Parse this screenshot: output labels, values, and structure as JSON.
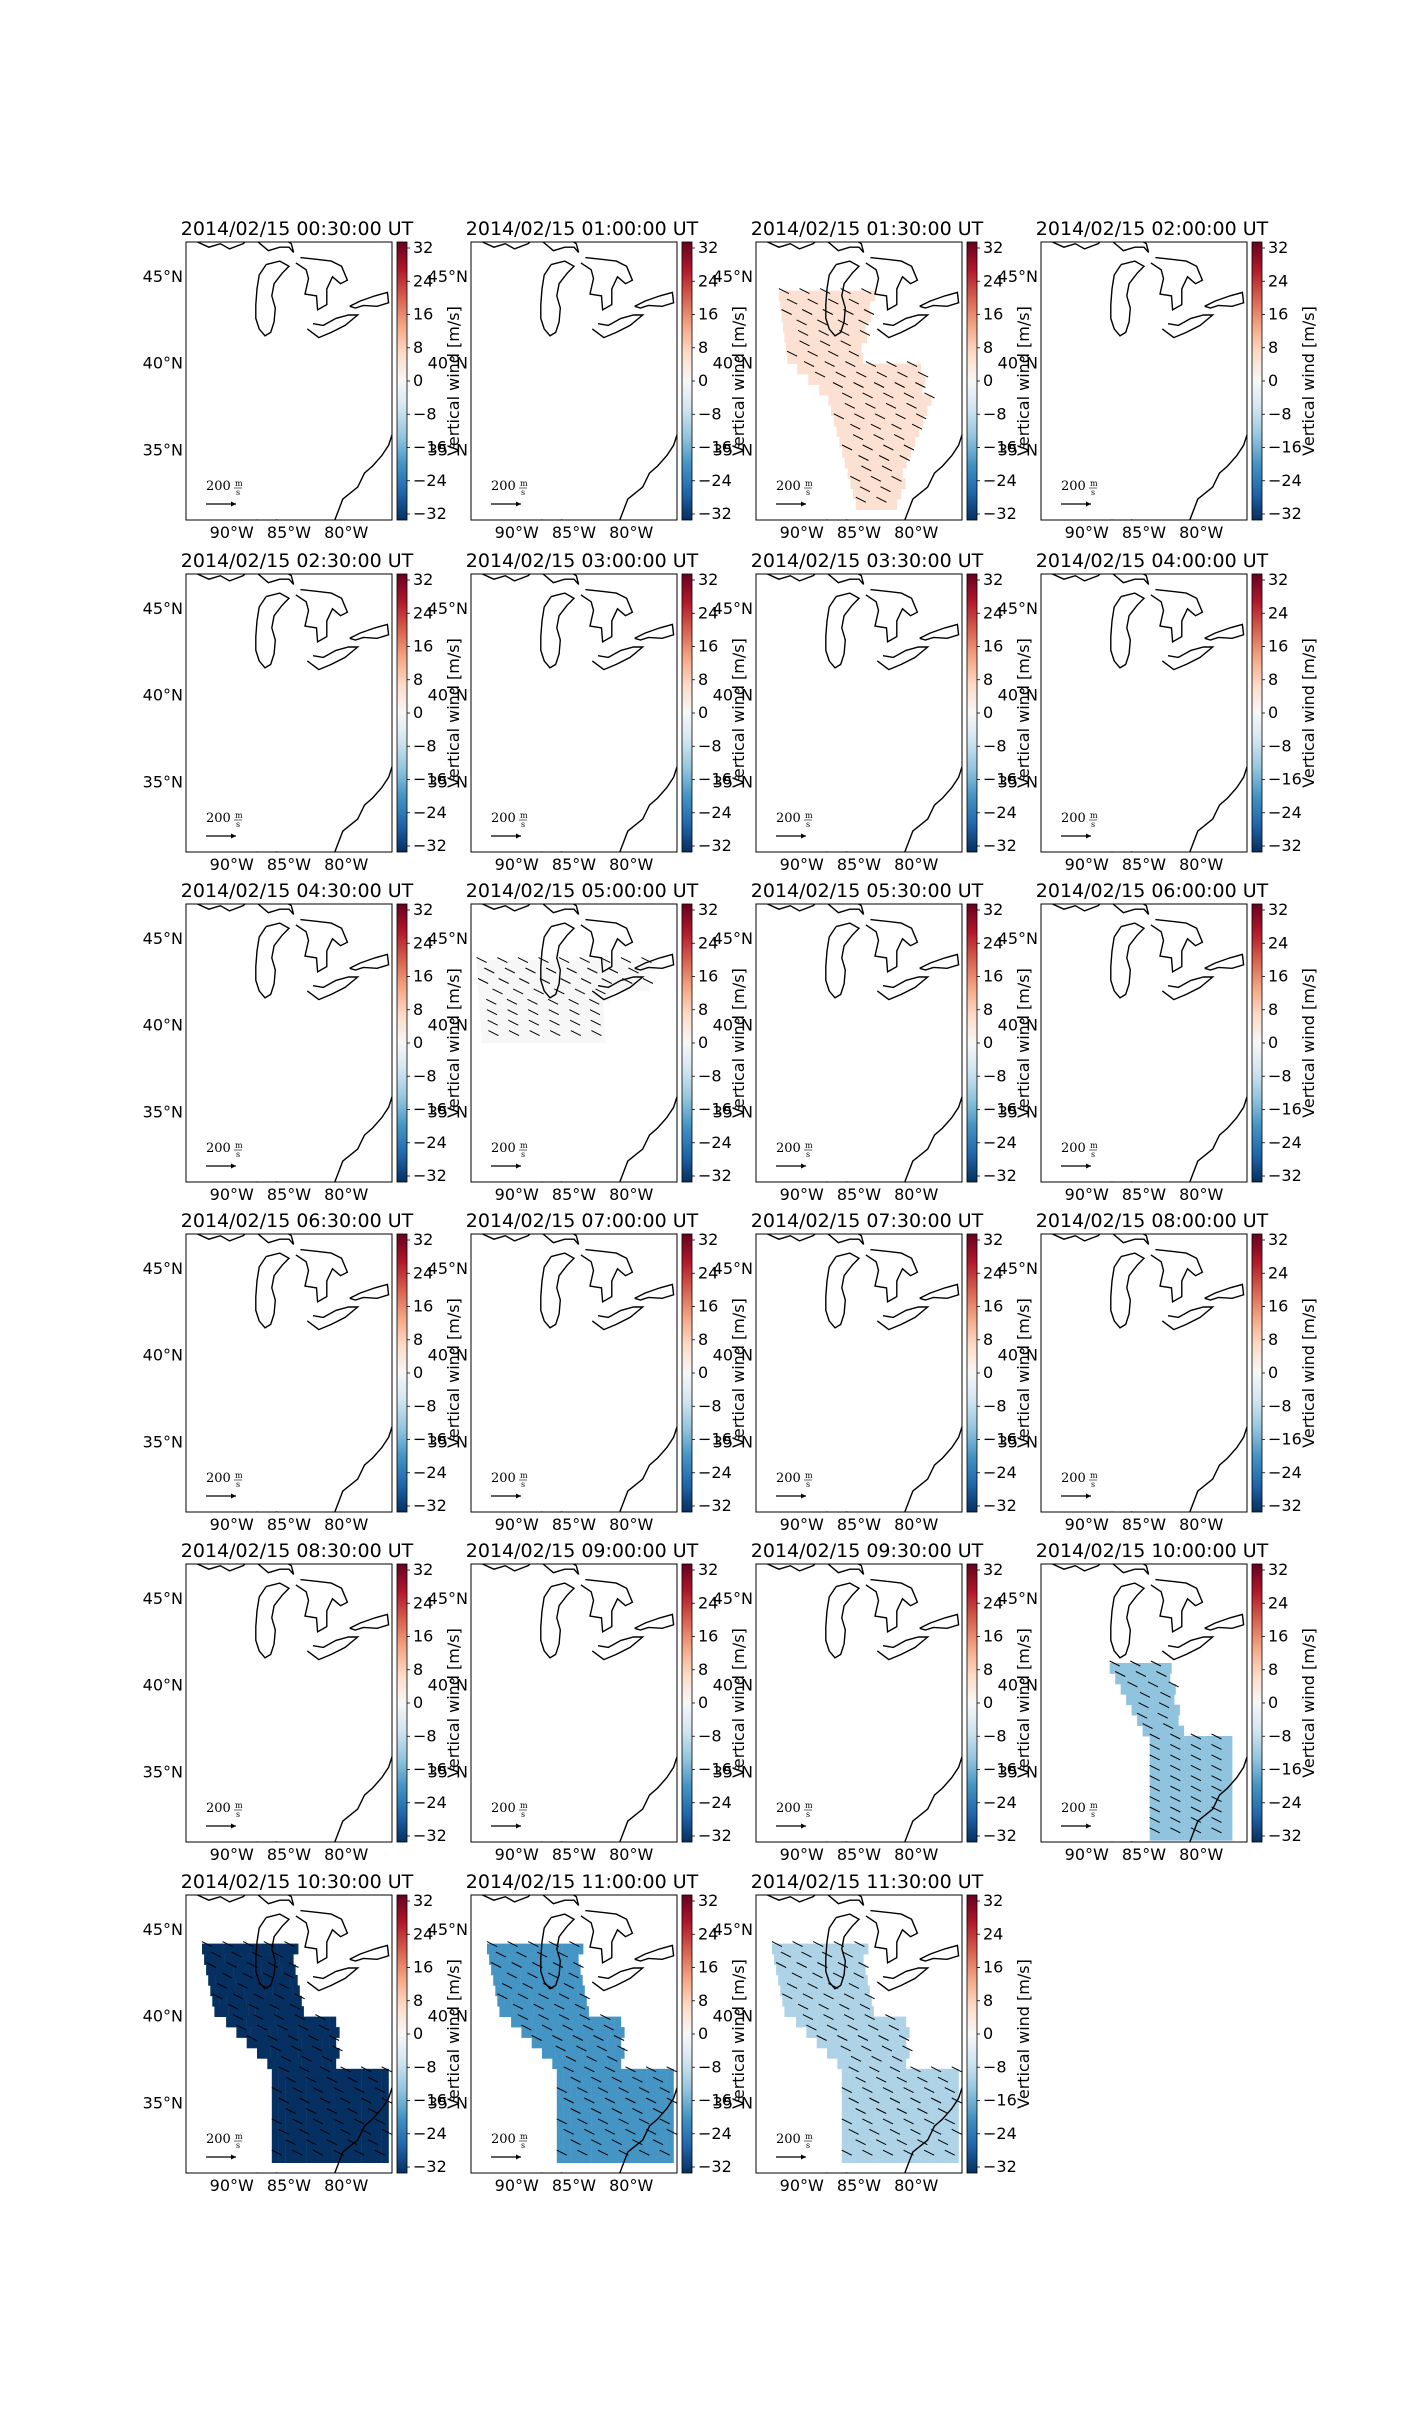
{
  "figure": {
    "colorbar_label": "Vertical wind [m/s]",
    "colorbar_ticks": [
      "32",
      "24",
      "16",
      "8",
      "0",
      "−8",
      "−16",
      "−24",
      "−32"
    ],
    "colorbar_range": [
      -32,
      32
    ],
    "lat_labels": [
      "45°N",
      "40°N",
      "35°N"
    ],
    "lon_labels": [
      "90°W",
      "85°W",
      "80°W"
    ],
    "quiver_key": {
      "value": "200",
      "unit_num": "m",
      "unit_den": "s"
    },
    "colormap": "RdBu_r"
  },
  "chart_data": {
    "type": "heatmap",
    "value_label": "Vertical wind [m/s]",
    "value_range": [
      -32,
      32
    ],
    "lon_range": [
      -94,
      -76
    ],
    "lat_range": [
      31,
      47
    ],
    "panels": [
      {
        "title": "2014/02/15 00:30:00 UT",
        "value": null,
        "region": null
      },
      {
        "title": "2014/02/15 01:00:00 UT",
        "value": null,
        "region": null
      },
      {
        "title": "2014/02/15 01:30:00 UT",
        "value": 5,
        "region": "central"
      },
      {
        "title": "2014/02/15 02:00:00 UT",
        "value": null,
        "region": null
      },
      {
        "title": "2014/02/15 02:30:00 UT",
        "value": null,
        "region": null
      },
      {
        "title": "2014/02/15 03:00:00 UT",
        "value": null,
        "region": null
      },
      {
        "title": "2014/02/15 03:30:00 UT",
        "value": null,
        "region": null
      },
      {
        "title": "2014/02/15 04:00:00 UT",
        "value": null,
        "region": null
      },
      {
        "title": "2014/02/15 04:30:00 UT",
        "value": null,
        "region": null
      },
      {
        "title": "2014/02/15 05:00:00 UT",
        "value": 0,
        "region": "north"
      },
      {
        "title": "2014/02/15 05:30:00 UT",
        "value": null,
        "region": null
      },
      {
        "title": "2014/02/15 06:00:00 UT",
        "value": null,
        "region": null
      },
      {
        "title": "2014/02/15 06:30:00 UT",
        "value": null,
        "region": null
      },
      {
        "title": "2014/02/15 07:00:00 UT",
        "value": null,
        "region": null
      },
      {
        "title": "2014/02/15 07:30:00 UT",
        "value": null,
        "region": null
      },
      {
        "title": "2014/02/15 08:00:00 UT",
        "value": null,
        "region": null
      },
      {
        "title": "2014/02/15 08:30:00 UT",
        "value": null,
        "region": null
      },
      {
        "title": "2014/02/15 09:00:00 UT",
        "value": null,
        "region": null
      },
      {
        "title": "2014/02/15 09:30:00 UT",
        "value": null,
        "region": null
      },
      {
        "title": "2014/02/15 10:00:00 UT",
        "value": -13,
        "region": "east"
      },
      {
        "title": "2014/02/15 10:30:00 UT",
        "value": -32,
        "region": "large"
      },
      {
        "title": "2014/02/15 11:00:00 UT",
        "value": -19,
        "region": "large"
      },
      {
        "title": "2014/02/15 11:30:00 UT",
        "value": -10,
        "region": "large"
      }
    ]
  }
}
